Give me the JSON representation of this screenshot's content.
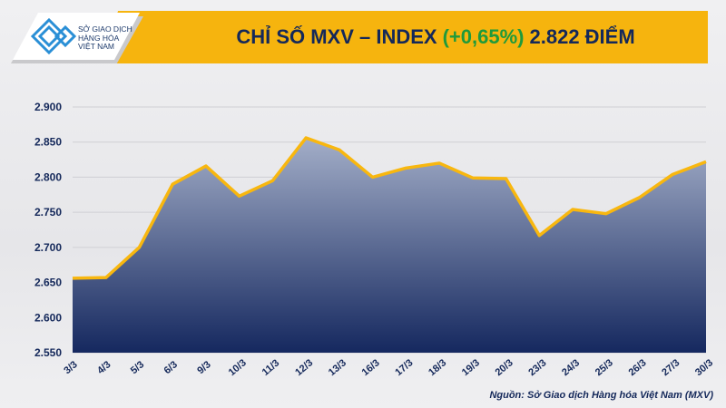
{
  "header": {
    "logo_text": [
      "SỞ GIAO DỊCH",
      "HÀNG HÓA",
      "VIỆT NAM"
    ],
    "title_main": "CHỈ SỐ MXV – INDEX",
    "title_change": "(+0,65%)",
    "title_value": "2.822 ĐIỂM"
  },
  "source": "Nguồn: Sở Giao dịch Hàng hóa Việt Nam (MXV)",
  "colors": {
    "banner": "#f6b40e",
    "line": "#f8b70f",
    "area_top": "#a3aec8",
    "area_bottom": "#15285f",
    "title": "#14285a",
    "change": "#1f9a3b"
  },
  "chart_data": {
    "type": "area",
    "title": "CHỈ SỐ MXV – INDEX (+0,65%) 2.822 ĐIỂM",
    "categories": [
      "3/3",
      "4/3",
      "5/3",
      "6/3",
      "9/3",
      "10/3",
      "11/3",
      "12/3",
      "13/3",
      "16/3",
      "17/3",
      "18/3",
      "19/3",
      "20/3",
      "23/3",
      "24/3",
      "25/3",
      "26/3",
      "27/3",
      "30/3"
    ],
    "values": [
      2656,
      2657,
      2700,
      2790,
      2816,
      2773,
      2795,
      2856,
      2839,
      2800,
      2813,
      2820,
      2799,
      2798,
      2717,
      2754,
      2748,
      2771,
      2804,
      2822
    ],
    "ylim": [
      2550,
      2900
    ],
    "yticks": [
      2550,
      2600,
      2650,
      2700,
      2750,
      2800,
      2850,
      2900
    ],
    "ytick_labels": [
      "2.550",
      "2.600",
      "2.650",
      "2.700",
      "2.750",
      "2.800",
      "2.850",
      "2.900"
    ],
    "grid": true
  }
}
